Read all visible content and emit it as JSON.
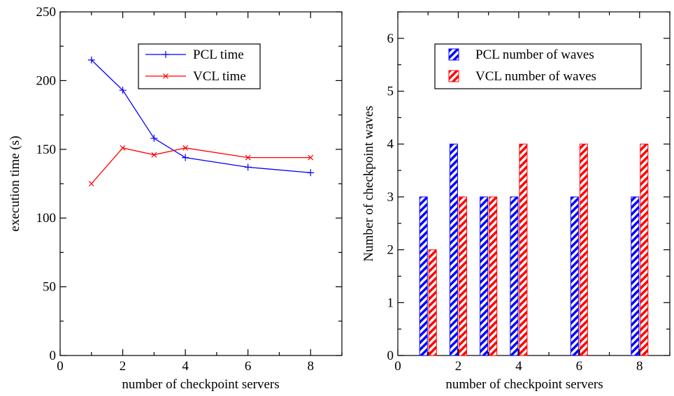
{
  "chart_data": [
    {
      "type": "line",
      "xlabel": "number of checkpoint servers",
      "ylabel": "execution time (s)",
      "xlim": [
        0,
        9
      ],
      "ylim": [
        0,
        250
      ],
      "xticks": [
        0,
        2,
        4,
        6,
        8
      ],
      "yticks": [
        0,
        50,
        100,
        150,
        200,
        250
      ],
      "grid": false,
      "legend_position": "top-right",
      "series": [
        {
          "name": "PCL time",
          "color": "#0000ff",
          "marker": "plus",
          "x": [
            1,
            2,
            3,
            4,
            6,
            8
          ],
          "y": [
            215,
            193,
            158,
            144,
            137,
            133
          ]
        },
        {
          "name": "VCL time",
          "color": "#ff0000",
          "marker": "cross",
          "x": [
            1,
            2,
            3,
            4,
            6,
            8
          ],
          "y": [
            125,
            151,
            146,
            151,
            144,
            144
          ]
        }
      ]
    },
    {
      "type": "bar",
      "xlabel": "number of checkpoint servers",
      "ylabel": "Number of checkpoint waves",
      "xlim": [
        0,
        9
      ],
      "ylim": [
        0,
        6.5
      ],
      "xticks": [
        0,
        2,
        4,
        6,
        8
      ],
      "yticks": [
        0,
        1,
        2,
        3,
        4,
        5,
        6
      ],
      "grid": false,
      "legend_position": "top-right",
      "x": [
        1,
        2,
        3,
        4,
        6,
        8
      ],
      "series": [
        {
          "name": "PCL number of waves",
          "color": "#0000ff",
          "pattern": "diagonal-hatch",
          "values": [
            3,
            4,
            3,
            3,
            3,
            3
          ]
        },
        {
          "name": "VCL number of waves",
          "color": "#ff0000",
          "pattern": "diagonal-hatch",
          "values": [
            2,
            3,
            3,
            4,
            4,
            4
          ]
        }
      ]
    }
  ]
}
